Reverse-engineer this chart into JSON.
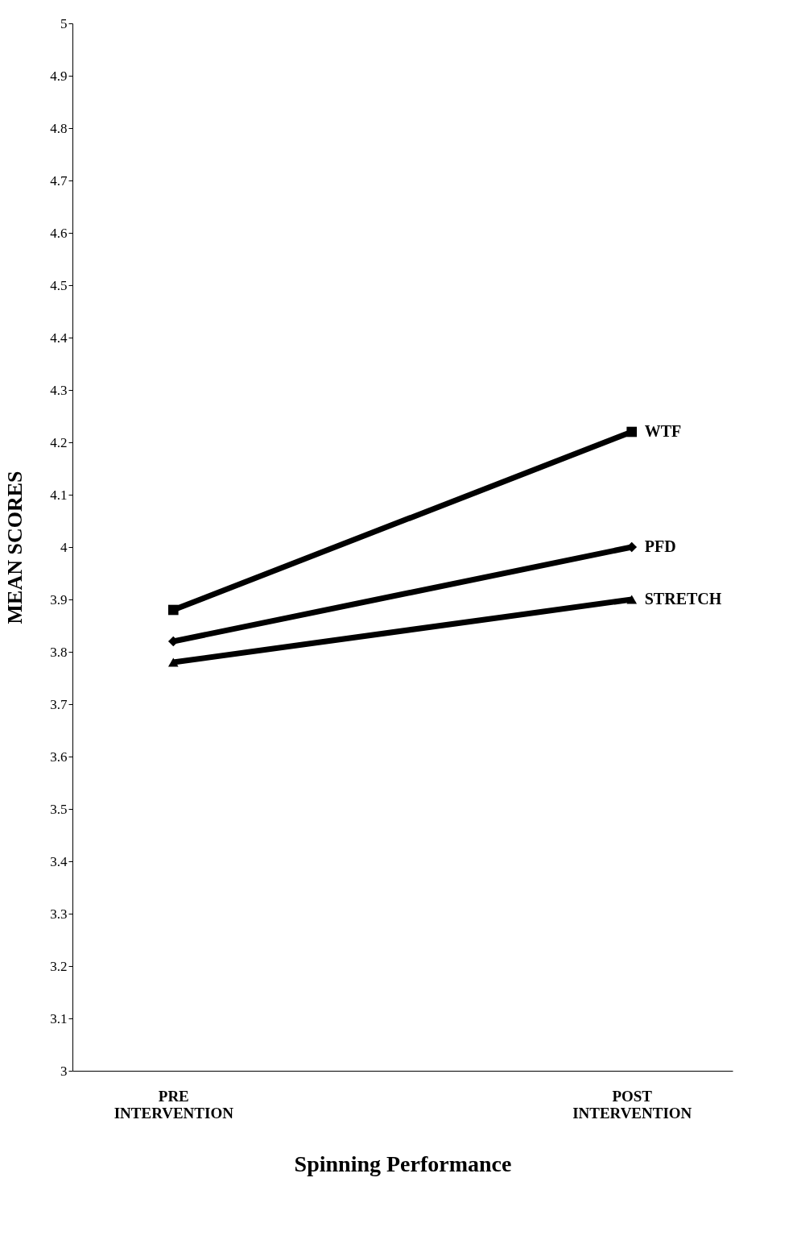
{
  "chart_data": {
    "type": "line",
    "xlabel": "Spinning Performance",
    "ylabel": "MEAN SCORES",
    "categories": [
      "PRE INTERVENTION",
      "POST INTERVENTION"
    ],
    "series": [
      {
        "name": "WTF",
        "color": "#000000",
        "marker": "square",
        "values": [
          3.88,
          4.22
        ]
      },
      {
        "name": "PFD",
        "color": "#000000",
        "marker": "diamond",
        "values": [
          3.82,
          4.0
        ]
      },
      {
        "name": "STRETCH",
        "color": "#000000",
        "marker": "triangle",
        "values": [
          3.78,
          3.9
        ]
      }
    ],
    "ylim": [
      3,
      5
    ],
    "yticks": [
      3,
      3.1,
      3.2,
      3.3,
      3.4,
      3.5,
      3.6,
      3.7,
      3.8,
      3.9,
      4,
      4.1,
      4.2,
      4.3,
      4.4,
      4.5,
      4.6,
      4.7,
      4.8,
      4.9,
      5
    ],
    "grid": false,
    "legend": false,
    "line_style": "solid"
  }
}
